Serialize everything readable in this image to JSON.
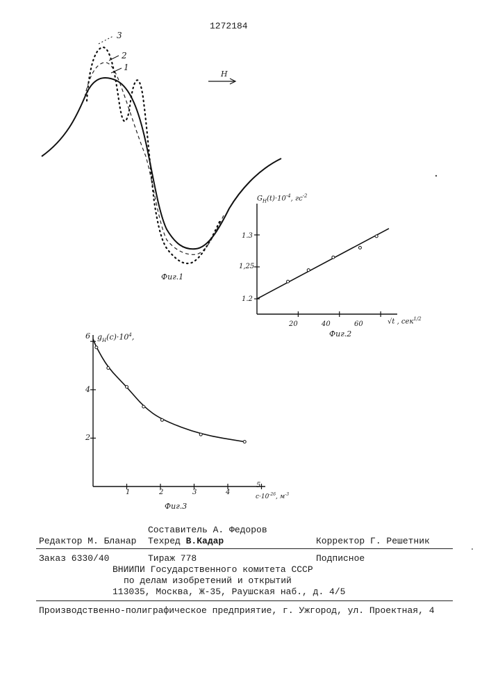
{
  "patent_number": "1272184",
  "fig1": {
    "caption": "Фиг.1",
    "curve_labels": [
      "1",
      "2",
      "3"
    ],
    "field_label": "H"
  },
  "fig2": {
    "caption": "Фиг.2",
    "ylabel": "G_H(t)·10^-4, гс^-2",
    "ylabel_main": "G",
    "ylabel_sub": "H",
    "ylabel_rest": "(t)·10",
    "ylabel_exp": "-4",
    "ylabel_unit": ", гс",
    "ylabel_unit_exp": "-2",
    "xlabel": "√t, сек^1/2",
    "xlabel_main": "√t , сек",
    "xlabel_exp": "1/2",
    "yticks": [
      "1.2",
      "1,25",
      "1.3"
    ],
    "xticks": [
      "20",
      "40",
      "60"
    ]
  },
  "fig3": {
    "caption": "Фиг.3",
    "ylabel": "g_H(c)·10^4,",
    "ylabel_main": "g",
    "ylabel_sub": "H",
    "ylabel_rest": "(c)·10",
    "ylabel_exp": "4",
    "ylabel_tail": ",",
    "xlabel": "c·10^-26, м^-3",
    "xlabel_main": "c·10",
    "xlabel_exp": "-26",
    "xlabel_unit": ", м",
    "xlabel_unit_exp": "-3",
    "yticks": [
      "2",
      "4",
      "6"
    ],
    "xticks": [
      "1",
      "2",
      "3",
      "4",
      "5"
    ]
  },
  "chart_data": [
    {
      "type": "line",
      "title": "",
      "series": [
        {
          "values": [
            [
              10,
              1.203
            ],
            [
              15,
              1.227
            ],
            [
              25,
              1.245
            ],
            [
              37,
              1.265
            ],
            [
              50,
              1.28
            ],
            [
              58,
              1.298
            ]
          ]
        }
      ],
      "xlabel": "√t, сек^1/2",
      "ylabel": "G_H(t)·10^-4, гс^-2",
      "xlim": [
        0,
        80
      ],
      "ylim": [
        1.18,
        1.33
      ],
      "xticks": [
        20,
        40,
        60
      ],
      "yticks": [
        1.2,
        1.25,
        1.3
      ],
      "grid": false
    },
    {
      "type": "line",
      "title": "",
      "series": [
        {
          "values": [
            [
              0.1,
              5.75
            ],
            [
              0.45,
              4.9
            ],
            [
              1.0,
              4.12
            ],
            [
              1.5,
              3.3
            ],
            [
              2.05,
              2.75
            ],
            [
              3.2,
              2.15
            ],
            [
              4.5,
              1.85
            ]
          ]
        }
      ],
      "xlabel": "c·10^-26, м^-3",
      "ylabel": "g_H(c)·10^4,",
      "xlim": [
        0,
        5.2
      ],
      "ylim": [
        0,
        6.2
      ],
      "xticks": [
        1,
        2,
        3,
        4,
        5
      ],
      "yticks": [
        2,
        4,
        6
      ],
      "grid": false
    }
  ],
  "footer": {
    "compiler": "Составитель А. Федоров",
    "editor": "Редактор М. Бланар",
    "techred_label": "Техред ",
    "techred_name": "В.Кадар",
    "corrector": "Корректор Г. Решетник",
    "order": "Заказ 6330/40",
    "circulation": "Тираж 778",
    "signed": "Подписное",
    "institute_line1": "ВНИИПИ Государственного комитета СССР",
    "institute_line2": "по делам изобретений и открытий",
    "institute_line3": "113035, Москва, Ж-35, Раушская наб., д. 4/5",
    "printer": "Производственно-полиграфическое предприятие, г. Ужгород, ул. Проектная, 4"
  }
}
